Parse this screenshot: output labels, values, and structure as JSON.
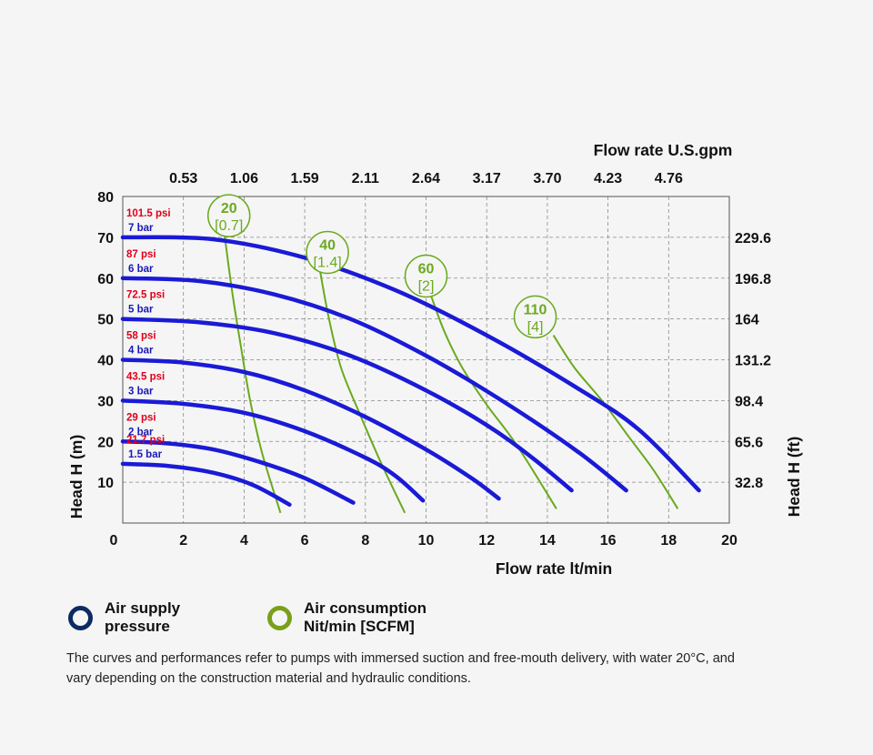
{
  "colors": {
    "pressure_curve": "#1a1ad6",
    "air_curve": "#6aaa1e",
    "psi_text": "#e0001b",
    "bar_text": "#1a1ab8",
    "grid": "#8a8a8a",
    "legend_blue": "#0c2b63",
    "legend_green": "#7aa01a"
  },
  "chart_data": {
    "type": "line",
    "xlabel": "Flow rate lt/min",
    "ylabel": "Head H (m)",
    "x2label": "Flow rate U.S.gpm",
    "y2label": "Head H (ft)",
    "xlim": [
      0,
      20
    ],
    "ylim": [
      0,
      80
    ],
    "x_ticks": [
      0,
      2,
      4,
      6,
      8,
      10,
      12,
      14,
      16,
      18,
      20
    ],
    "y_ticks": [
      10,
      20,
      30,
      40,
      50,
      60,
      70,
      80
    ],
    "x2_tick_labels": [
      "0.53",
      "1.06",
      "1.59",
      "2.11",
      "2.64",
      "3.17",
      "3.70",
      "4.23",
      "4.76"
    ],
    "x2_tick_positions": [
      2,
      4,
      6,
      8,
      10,
      12,
      14,
      16,
      18
    ],
    "y2_tick_labels": [
      "229.6",
      "196.8",
      "164",
      "131.2",
      "98.4",
      "65.6",
      "32.8"
    ],
    "y2_tick_positions": [
      70,
      60,
      50,
      40,
      30,
      20,
      10
    ],
    "grid": true,
    "pressure_series": [
      {
        "psi": "101.5 psi",
        "bar": "7 bar",
        "points": [
          [
            0,
            70
          ],
          [
            3,
            69.5
          ],
          [
            6,
            65
          ],
          [
            9,
            57
          ],
          [
            12,
            46
          ],
          [
            15,
            33
          ],
          [
            17,
            23
          ],
          [
            19,
            8
          ]
        ]
      },
      {
        "psi": "87 psi",
        "bar": "6 bar",
        "points": [
          [
            0,
            60
          ],
          [
            2.5,
            59.3
          ],
          [
            5,
            56
          ],
          [
            7.5,
            50
          ],
          [
            10,
            41
          ],
          [
            12.5,
            30
          ],
          [
            15,
            17.5
          ],
          [
            16.6,
            8
          ]
        ]
      },
      {
        "psi": "72.5 psi",
        "bar": "5 bar",
        "points": [
          [
            0,
            50
          ],
          [
            2.5,
            49.2
          ],
          [
            5,
            46.5
          ],
          [
            7.5,
            41
          ],
          [
            10,
            32.5
          ],
          [
            12,
            24
          ],
          [
            13.5,
            16
          ],
          [
            14.8,
            8
          ]
        ]
      },
      {
        "psi": "58 psi",
        "bar": "4 bar",
        "points": [
          [
            0,
            40
          ],
          [
            2,
            39.3
          ],
          [
            4,
            37
          ],
          [
            6,
            32.5
          ],
          [
            8,
            26
          ],
          [
            10,
            18
          ],
          [
            11.5,
            11
          ],
          [
            12.4,
            6
          ]
        ]
      },
      {
        "psi": "43.5 psi",
        "bar": "3 bar",
        "points": [
          [
            0,
            30
          ],
          [
            2,
            29.2
          ],
          [
            4,
            27
          ],
          [
            6,
            22.5
          ],
          [
            8,
            16
          ],
          [
            9,
            11.5
          ],
          [
            9.9,
            5.5
          ]
        ]
      },
      {
        "psi": "29 psi",
        "bar": "2 bar",
        "points": [
          [
            0,
            20
          ],
          [
            1.5,
            19.5
          ],
          [
            3,
            18
          ],
          [
            4.5,
            15
          ],
          [
            6,
            11
          ],
          [
            7.6,
            5
          ]
        ]
      },
      {
        "psi": "21.7 psi",
        "bar": "1.5 bar",
        "points": [
          [
            0,
            14.5
          ],
          [
            1.5,
            14
          ],
          [
            3,
            12.3
          ],
          [
            4.3,
            9.3
          ],
          [
            5.5,
            4.5
          ]
        ]
      }
    ],
    "air_series": [
      {
        "value": "20",
        "scfm": "[0.7]",
        "label_at": [
          3.5,
          75.3
        ],
        "points": [
          [
            3.35,
            71
          ],
          [
            3.6,
            57
          ],
          [
            3.9,
            43
          ],
          [
            4.2,
            30
          ],
          [
            4.6,
            17
          ],
          [
            5.2,
            2.5
          ]
        ]
      },
      {
        "value": "40",
        "scfm": "[1.4]",
        "label_at": [
          6.75,
          66.3
        ],
        "points": [
          [
            6.5,
            62
          ],
          [
            6.8,
            50
          ],
          [
            7.2,
            38
          ],
          [
            7.8,
            27
          ],
          [
            8.5,
            15
          ],
          [
            9.3,
            2.5
          ]
        ]
      },
      {
        "value": "60",
        "scfm": "[2]",
        "label_at": [
          10,
          60.5
        ],
        "points": [
          [
            10.15,
            56
          ],
          [
            10.6,
            47
          ],
          [
            11.2,
            38
          ],
          [
            12,
            29
          ],
          [
            13,
            19
          ],
          [
            14.3,
            3.5
          ]
        ]
      },
      {
        "value": "110",
        "scfm": "[4]",
        "label_at": [
          13.6,
          50.5
        ],
        "points": [
          [
            14.2,
            46
          ],
          [
            14.9,
            38
          ],
          [
            15.8,
            30
          ],
          [
            16.7,
            21
          ],
          [
            17.5,
            13
          ],
          [
            18.3,
            3.5
          ]
        ]
      }
    ]
  },
  "legend": [
    {
      "line1": "Air supply",
      "line2": "pressure"
    },
    {
      "line1": "Air consumption",
      "line2": "Nit/min [SCFM]"
    }
  ],
  "footnote": "The curves and performances refer to pumps with immersed suction and free-mouth delivery, with water 20°C, and vary depending on the construction material and hydraulic conditions."
}
